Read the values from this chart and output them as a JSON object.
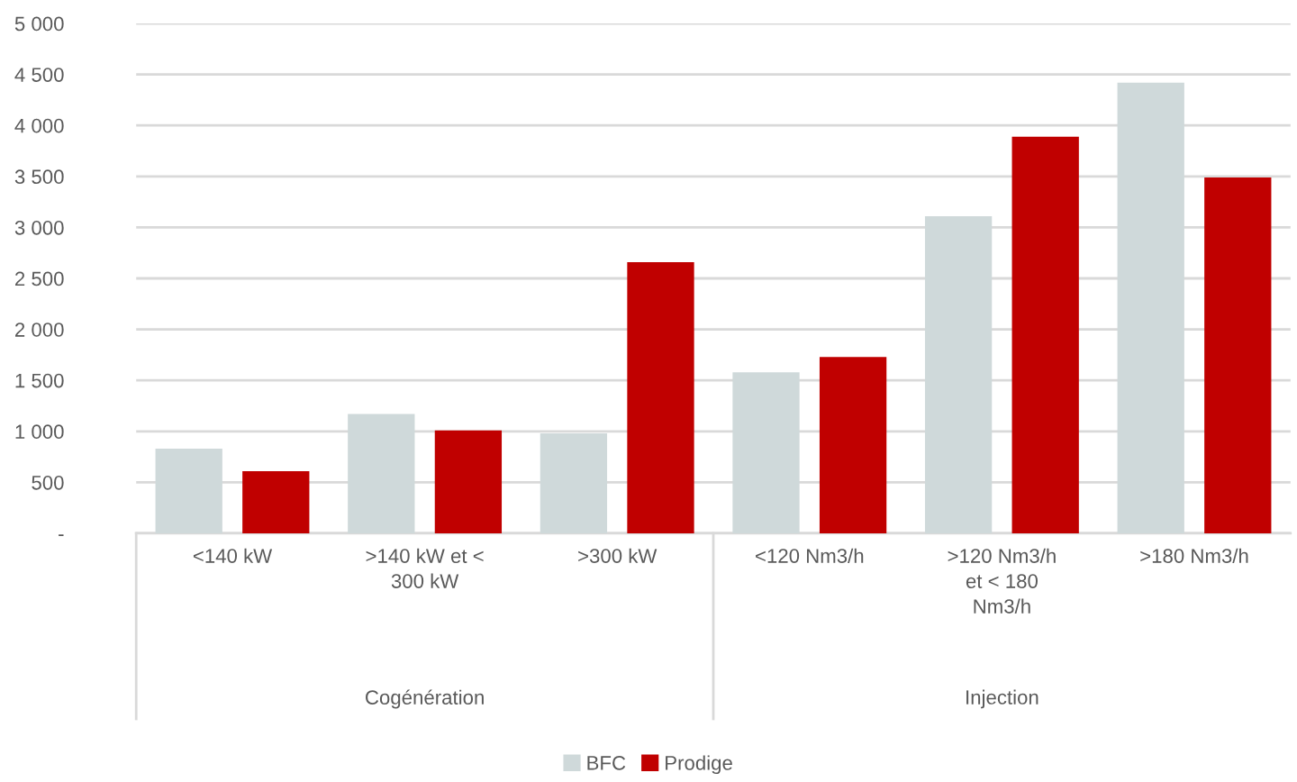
{
  "chart_data": {
    "type": "bar",
    "categories": [
      "<140 kW",
      ">140 kW et <\n300 kW",
      ">300 kW",
      "<120 Nm3/h",
      ">120 Nm3/h\net < 180\nNm3/h",
      ">180 Nm3/h"
    ],
    "series": [
      {
        "name": "BFC",
        "color": "#cfd9da",
        "values": [
          830,
          1170,
          980,
          1580,
          3110,
          4420
        ]
      },
      {
        "name": "Prodige",
        "color": "#c00000",
        "values": [
          610,
          1010,
          2660,
          1730,
          3890,
          3490
        ]
      }
    ],
    "annotations": [
      "Cogénération",
      "Injection"
    ],
    "ylim": [
      0,
      5000
    ],
    "yticks": [
      {
        "value": 0,
        "label": "-"
      },
      {
        "value": 500,
        "label": "500"
      },
      {
        "value": 1000,
        "label": "1 000"
      },
      {
        "value": 1500,
        "label": "1 500"
      },
      {
        "value": 2000,
        "label": "2 000"
      },
      {
        "value": 2500,
        "label": "2 500"
      },
      {
        "value": 3000,
        "label": "3 000"
      },
      {
        "value": 3500,
        "label": "3 500"
      },
      {
        "value": 4000,
        "label": "4 000"
      },
      {
        "value": 4500,
        "label": "4 500"
      },
      {
        "value": 5000,
        "label": "5 000"
      }
    ],
    "grid": "y",
    "legend": "bottom"
  }
}
